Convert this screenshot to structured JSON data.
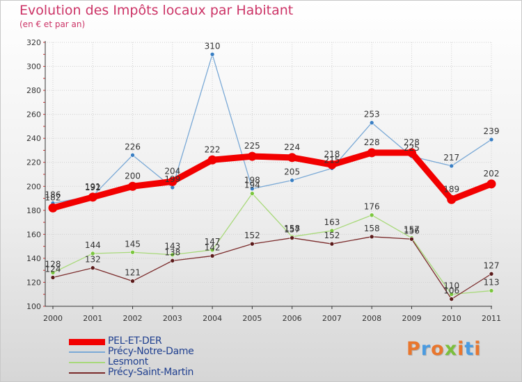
{
  "title": "Evolution des Impôts locaux par Habitant",
  "subtitle": "(en € et par an)",
  "logo": {
    "text": "Proxiti",
    "colors": [
      "#e9762d",
      "#4b9be0",
      "#e9762d",
      "#7bbf3c",
      "#e9762d",
      "#4b9be0",
      "#e9762d"
    ]
  },
  "chart_data": {
    "type": "line",
    "categories": [
      "2000",
      "2001",
      "2002",
      "2003",
      "2004",
      "2005",
      "2006",
      "2007",
      "2008",
      "2009",
      "2010",
      "2011"
    ],
    "ylim": [
      100,
      320
    ],
    "yticks": [
      100,
      120,
      140,
      160,
      180,
      200,
      220,
      240,
      260,
      280,
      300,
      320
    ],
    "grid": true,
    "legend_position": "bottom-left",
    "series": [
      {
        "name": "Précy-Notre-Dame",
        "color": "#7aa9d6",
        "marker": "#3a7fc3",
        "values": [
          186,
          192,
          226,
          199,
          310,
          198,
          205,
          215,
          253,
          225,
          217,
          239
        ],
        "labels": [
          "186",
          "192",
          "226",
          "199",
          "310",
          "198",
          "205",
          "215",
          "253",
          "225",
          "217",
          "239"
        ]
      },
      {
        "name": "Lesmont",
        "color": "#a8d97a",
        "marker": "#7bc63e",
        "values": [
          128,
          144,
          145,
          143,
          147,
          194,
          158,
          163,
          176,
          157,
          110,
          113
        ],
        "labels": [
          "128",
          "144",
          "145",
          "143",
          "147",
          "194",
          "158",
          "163",
          "176",
          "157",
          "110",
          "113"
        ]
      },
      {
        "name": "Précy-Saint-Martin",
        "color": "#7a2a2a",
        "marker": "#5a1a1a",
        "values": [
          124,
          132,
          121,
          138,
          142,
          152,
          157,
          152,
          158,
          156,
          106,
          127
        ],
        "labels": [
          "124",
          "132",
          "121",
          "138",
          "142",
          "152",
          "157",
          "152",
          "158",
          "156",
          "106",
          "127"
        ]
      },
      {
        "name": "PEL-ET-DER",
        "color": "#f20000",
        "marker": "#f20000",
        "values": [
          182,
          191,
          200,
          204,
          222,
          225,
          224,
          218,
          228,
          228,
          189,
          202
        ],
        "labels": [
          "182",
          "191",
          "200",
          "204",
          "222",
          "225",
          "224",
          "218",
          "228",
          "228",
          "189",
          "202"
        ]
      }
    ],
    "legend_order": [
      "PEL-ET-DER",
      "Précy-Notre-Dame",
      "Lesmont",
      "Précy-Saint-Martin"
    ]
  }
}
